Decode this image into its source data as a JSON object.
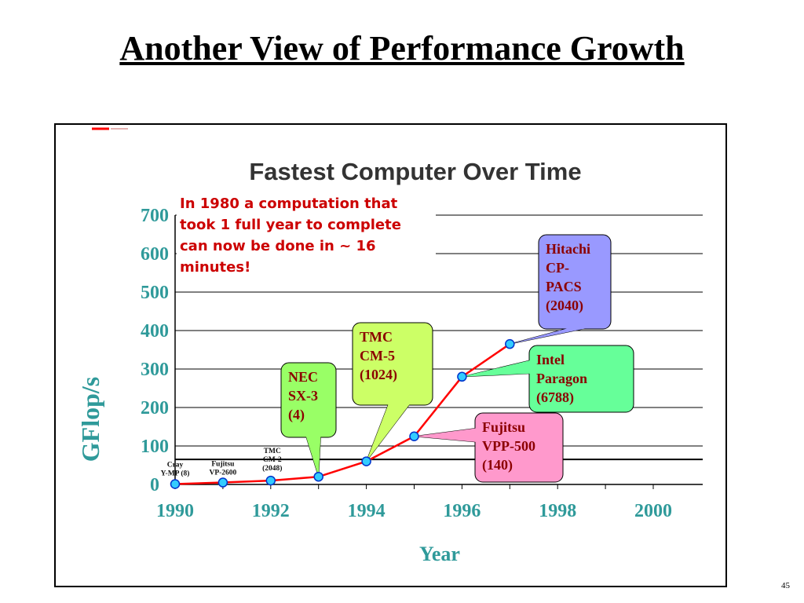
{
  "slide": {
    "title": "Another View of Performance Growth",
    "page_number": "45"
  },
  "colors": {
    "axis_text": "#2f9a9a",
    "line": "#ff0000",
    "marker_fill": "#33ccff",
    "marker_stroke": "#0033cc",
    "note_text": "#cc0000",
    "callout_text": "#8b0000"
  },
  "chart_data": {
    "type": "line",
    "title": "Fastest Computer Over Time",
    "xlabel": "Year",
    "ylabel": "GFlop/s",
    "xlim": [
      1990,
      2001
    ],
    "ylim": [
      0,
      700
    ],
    "x_ticks": [
      1990,
      1992,
      1994,
      1996,
      1998,
      2000
    ],
    "y_ticks": [
      0,
      100,
      200,
      300,
      400,
      500,
      600,
      700
    ],
    "grid": "horizontal",
    "reference_line_y": 65,
    "series": [
      {
        "x": [
          1990,
          1991,
          1992,
          1993,
          1994,
          1995,
          1996,
          1997
        ],
        "y": [
          1,
          5,
          10,
          20,
          60,
          125,
          280,
          365
        ]
      }
    ],
    "note": [
      "In 1980 a computation that",
      "took 1 full year to complete",
      "can now be done in ~ 16",
      "minutes!"
    ],
    "point_labels": [
      {
        "lines": [
          "Cray",
          "Y-MP  (8)"
        ],
        "x": 1990,
        "y": 1
      },
      {
        "lines": [
          "Fujitsu",
          "VP-2600"
        ],
        "x": 1991,
        "y": 5
      },
      {
        "lines": [
          "TMC",
          "CM-2",
          "(2048)"
        ],
        "x": 1992,
        "y": 10
      }
    ],
    "callouts": [
      {
        "lines": [
          "NEC",
          "SX-3",
          "(4)"
        ],
        "x": 1993,
        "y": 20,
        "fill": "#99ff66"
      },
      {
        "lines": [
          "TMC",
          "CM-5",
          "(1024)"
        ],
        "x": 1994,
        "y": 60,
        "fill": "#ccff66"
      },
      {
        "lines": [
          "Fujitsu",
          "VPP-500",
          "(140)"
        ],
        "x": 1995,
        "y": 125,
        "fill": "#ff99cc"
      },
      {
        "lines": [
          "Intel",
          "Paragon",
          "(6788)"
        ],
        "x": 1996,
        "y": 280,
        "fill": "#66ff99"
      },
      {
        "lines": [
          "Hitachi",
          "CP-",
          "PACS",
          "(2040)"
        ],
        "x": 1997,
        "y": 365,
        "fill": "#9999ff"
      }
    ]
  }
}
